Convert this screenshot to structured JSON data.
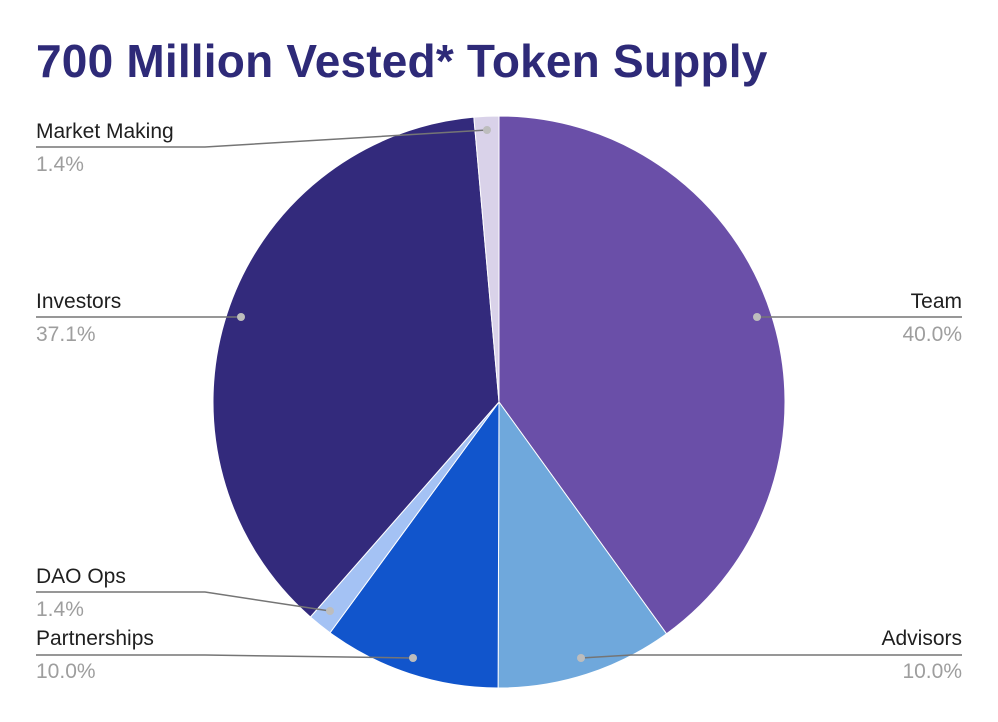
{
  "chart_data": {
    "type": "pie",
    "title": "700 Million Vested* Token Supply",
    "slices": [
      {
        "label": "Team",
        "value": 40.0,
        "display": "40.0%",
        "color": "#6a4fa8"
      },
      {
        "label": "Advisors",
        "value": 10.0,
        "display": "10.0%",
        "color": "#6fa8dc"
      },
      {
        "label": "Partnerships",
        "value": 10.0,
        "display": "10.0%",
        "color": "#1155cc"
      },
      {
        "label": "DAO Ops",
        "value": 1.4,
        "display": "1.4%",
        "color": "#a4c2f4"
      },
      {
        "label": "Investors",
        "value": 37.1,
        "display": "37.1%",
        "color": "#332a7c"
      },
      {
        "label": "Market Making",
        "value": 1.4,
        "display": "1.4%",
        "color": "#d9d2e9"
      }
    ],
    "start_angle": "12 o'clock",
    "direction": "clockwise",
    "legend": "none (callout labels)"
  },
  "colors": {
    "title": "#2e2a78",
    "leader_line": "#757575",
    "leader_dot": "#bdbdbd",
    "label_name": "#1f1f1f",
    "label_value": "#9e9e9e"
  }
}
